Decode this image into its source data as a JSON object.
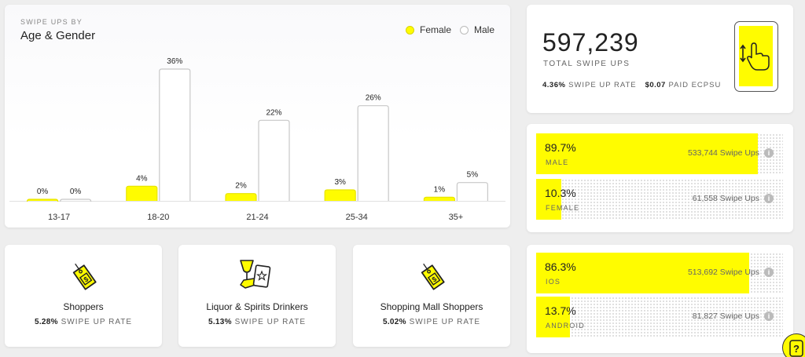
{
  "chart": {
    "subtitle": "SWIPE UPS BY",
    "title": "Age & Gender",
    "legend": [
      {
        "name": "Female",
        "color": "#fffc00"
      },
      {
        "name": "Male",
        "color": "#ffffff"
      }
    ]
  },
  "chart_data": {
    "type": "bar",
    "categories": [
      "13-17",
      "18-20",
      "21-24",
      "25-34",
      "35+"
    ],
    "series": [
      {
        "name": "Female",
        "values": [
          0,
          4,
          2,
          3,
          1
        ],
        "labels": [
          "0%",
          "4%",
          "2%",
          "3%",
          "1%"
        ]
      },
      {
        "name": "Male",
        "values": [
          0,
          36,
          22,
          26,
          5
        ],
        "labels": [
          "0%",
          "36%",
          "22%",
          "26%",
          "5%"
        ]
      }
    ],
    "ylim": [
      0,
      36
    ],
    "grid": false,
    "legend_position": "top-right"
  },
  "summary": {
    "total": "597,239",
    "total_label": "TOTAL SWIPE UPS",
    "rate_value": "4.36%",
    "rate_label": "SWIPE UP RATE",
    "ecpsu_value": "$0.07",
    "ecpsu_label": "PAID ECPSU",
    "icon": "phone-swipe-up-icon"
  },
  "gender": [
    {
      "pct": "89.7%",
      "fraction": 0.897,
      "label": "MALE",
      "count": "533,744 Swipe Ups"
    },
    {
      "pct": "10.3%",
      "fraction": 0.103,
      "label": "FEMALE",
      "count": "61,558 Swipe Ups"
    }
  ],
  "os": [
    {
      "pct": "86.3%",
      "fraction": 0.863,
      "label": "IOS",
      "count": "513,692 Swipe Ups"
    },
    {
      "pct": "13.7%",
      "fraction": 0.137,
      "label": "ANDROID",
      "count": "81,827 Swipe Ups"
    }
  ],
  "audiences": [
    {
      "name": "Shoppers",
      "rate": "5.28%",
      "rate_label": "SWIPE UP RATE",
      "icon": "price-tag-icon"
    },
    {
      "name": "Liquor & Spirits Drinkers",
      "rate": "5.13%",
      "rate_label": "SWIPE UP RATE",
      "icon": "drink-icon"
    },
    {
      "name": "Shopping Mall Shoppers",
      "rate": "5.02%",
      "rate_label": "SWIPE UP RATE",
      "icon": "price-tag-icon"
    }
  ],
  "colors": {
    "accent": "#fffc00",
    "text": "#222222",
    "muted": "#666666"
  }
}
